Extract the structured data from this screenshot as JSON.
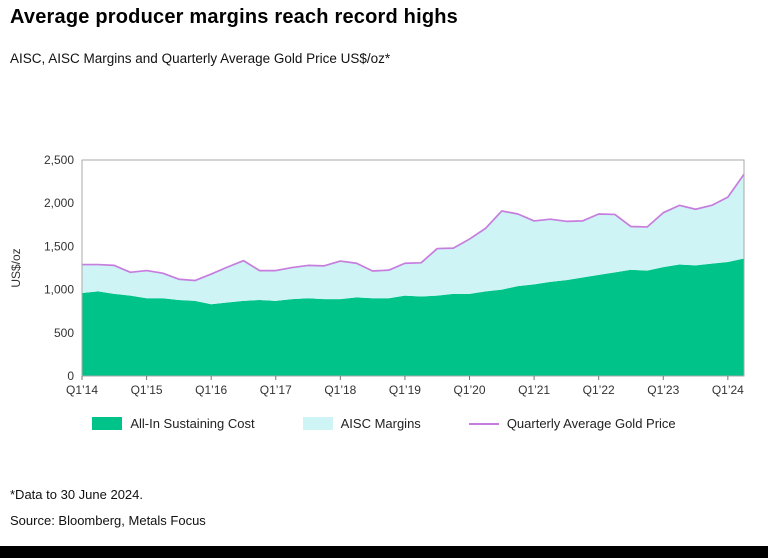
{
  "header": {
    "title": "Average producer margins reach record highs",
    "subtitle": "AISC, AISC Margins and Quarterly Average Gold Price US$/oz*"
  },
  "footer": {
    "note": "*Data to 30 June 2024.",
    "source": "Source: Bloomberg, Metals Focus"
  },
  "chart_data": {
    "type": "area",
    "title": "Average producer margins reach record highs",
    "subtitle": "AISC, AISC Margins and Quarterly Average Gold Price US$/oz*",
    "ylabel": "US$/oz",
    "ylim": [
      0,
      2500
    ],
    "yticks": [
      0,
      500,
      1000,
      1500,
      2000,
      2500
    ],
    "x_tick_every": 4,
    "grid": false,
    "legend_position": "bottom",
    "x": [
      "Q1’14",
      "Q2’14",
      "Q3’14",
      "Q4’14",
      "Q1’15",
      "Q2’15",
      "Q3’15",
      "Q4’15",
      "Q1’16",
      "Q2’16",
      "Q3’16",
      "Q4’16",
      "Q1’17",
      "Q2’17",
      "Q3’17",
      "Q4’17",
      "Q1’18",
      "Q2’18",
      "Q3’18",
      "Q4’18",
      "Q1’19",
      "Q2’19",
      "Q3’19",
      "Q4’19",
      "Q1’20",
      "Q2’20",
      "Q3’20",
      "Q4’20",
      "Q1’21",
      "Q2’21",
      "Q3’21",
      "Q4’21",
      "Q1’22",
      "Q2’22",
      "Q3’22",
      "Q4’22",
      "Q1’23",
      "Q2’23",
      "Q3’23",
      "Q4’23",
      "Q1’24",
      "Q2’24"
    ],
    "series": [
      {
        "name": "All-In Sustaining Cost",
        "type": "area",
        "color": "#00C389",
        "values": [
          960,
          980,
          950,
          930,
          900,
          900,
          880,
          870,
          830,
          850,
          870,
          880,
          870,
          890,
          900,
          890,
          890,
          910,
          900,
          900,
          930,
          920,
          930,
          950,
          950,
          980,
          1000,
          1040,
          1060,
          1090,
          1110,
          1140,
          1170,
          1200,
          1230,
          1220,
          1260,
          1290,
          1280,
          1300,
          1320,
          1360
        ]
      },
      {
        "name": "AISC Margins",
        "type": "area",
        "color": "#CEF4F6",
        "values": [
          330,
          310,
          330,
          270,
          320,
          290,
          240,
          235,
          350,
          410,
          465,
          340,
          350,
          365,
          380,
          385,
          440,
          395,
          315,
          325,
          375,
          390,
          545,
          530,
          635,
          730,
          910,
          835,
          735,
          725,
          680,
          655,
          705,
          670,
          500,
          505,
          630,
          685,
          650,
          675,
          750,
          975
        ]
      },
      {
        "name": "Quarterly Average Gold Price",
        "type": "line",
        "color": "#C77DDE",
        "values": [
          1290,
          1290,
          1280,
          1200,
          1220,
          1190,
          1120,
          1105,
          1180,
          1260,
          1335,
          1220,
          1220,
          1255,
          1280,
          1275,
          1330,
          1305,
          1215,
          1225,
          1305,
          1310,
          1475,
          1480,
          1585,
          1710,
          1910,
          1875,
          1795,
          1815,
          1790,
          1795,
          1875,
          1870,
          1730,
          1725,
          1890,
          1975,
          1930,
          1975,
          2070,
          2335
        ]
      }
    ],
    "plot_border_color": "#a9a9a9"
  }
}
